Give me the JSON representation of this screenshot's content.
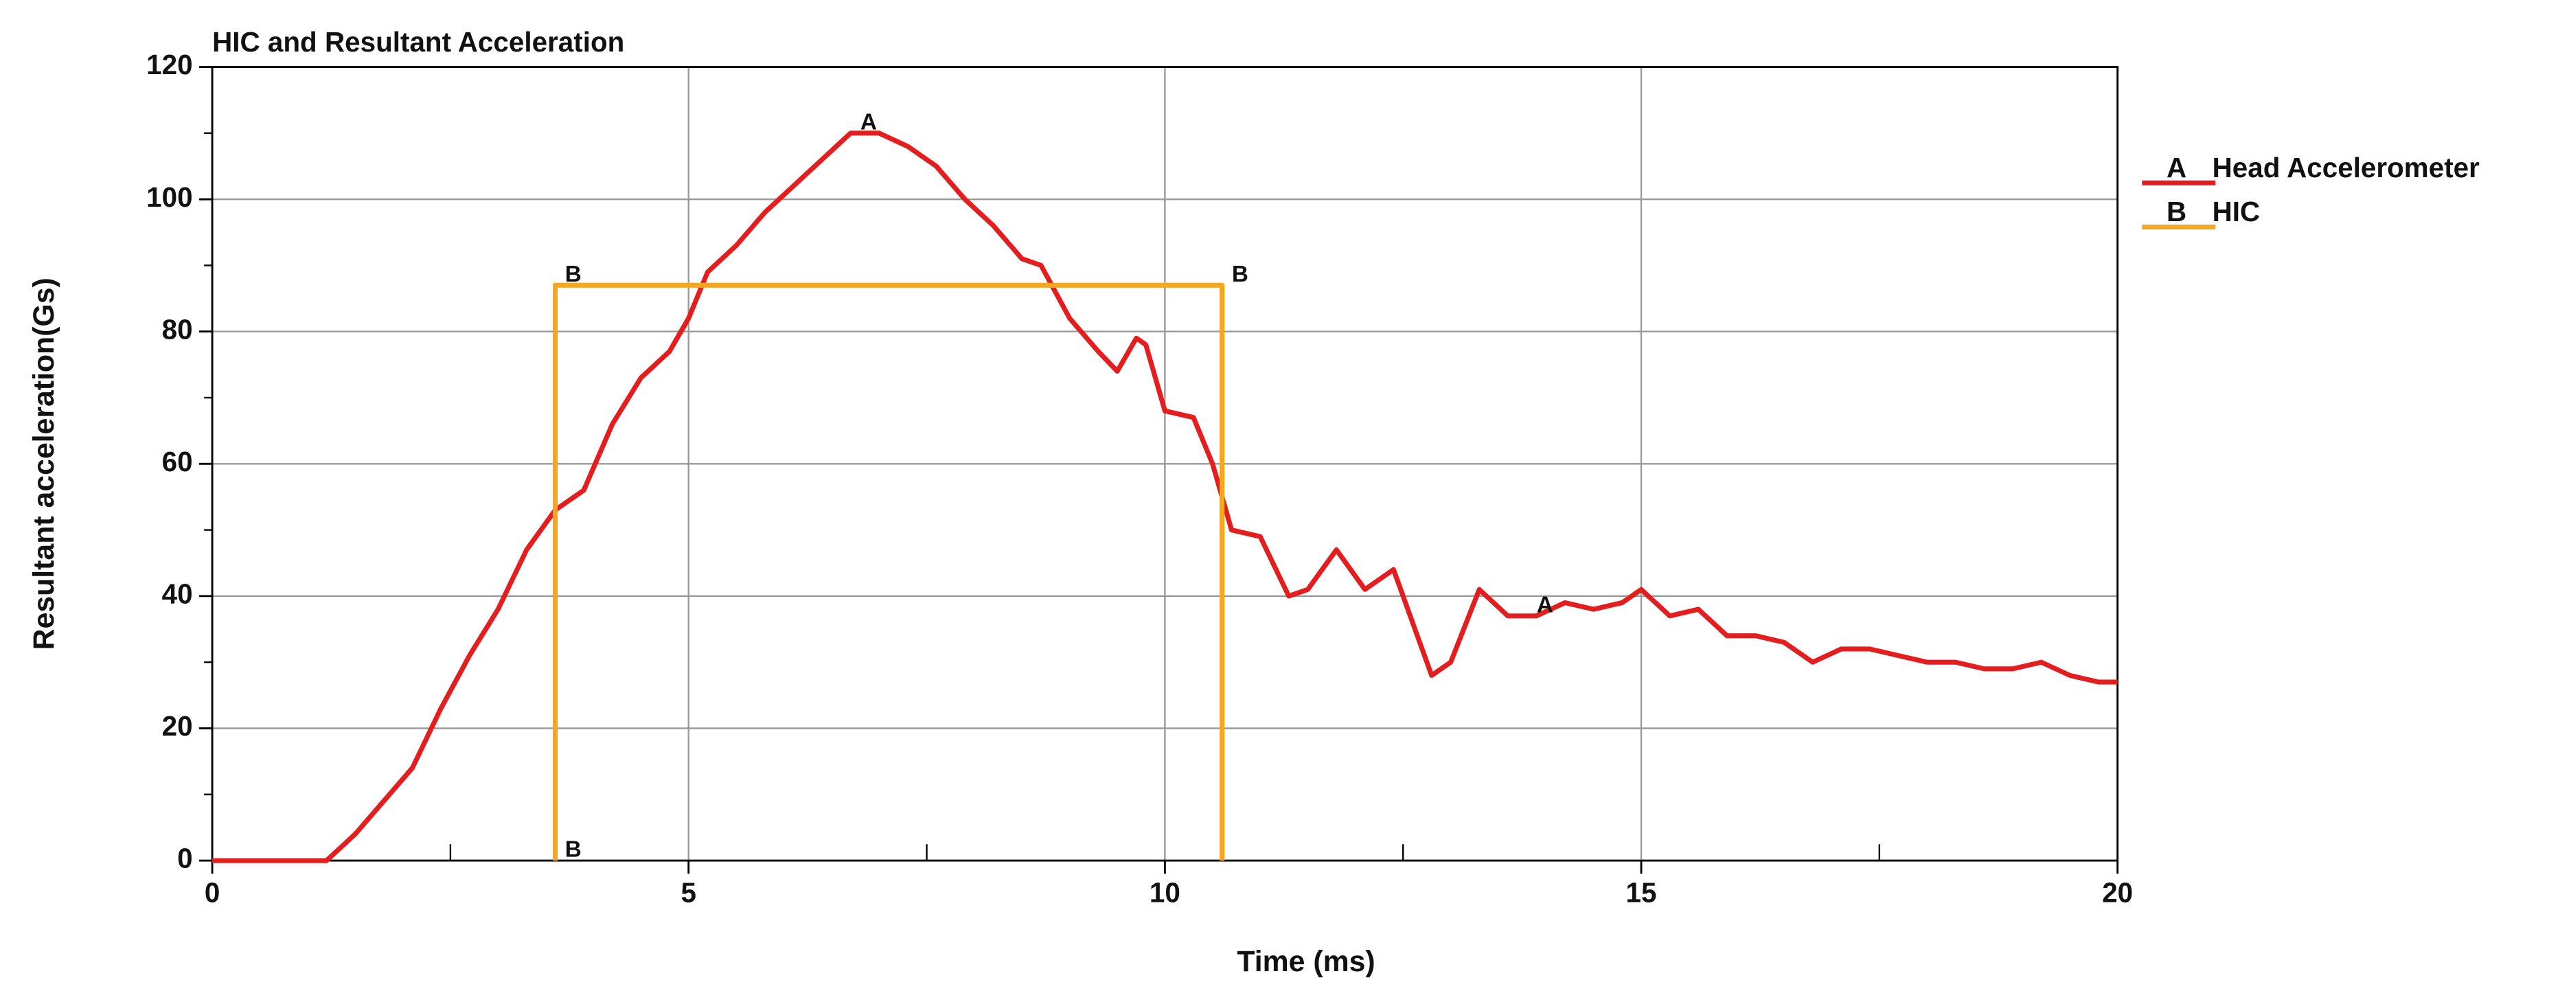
{
  "chart_data": {
    "type": "line",
    "title": "HIC and Resultant Acceleration",
    "x_label": "Time (ms)",
    "y_label": "Resultant acceleration(Gs)",
    "xlim": [
      0,
      20
    ],
    "xticks": [
      0,
      5,
      10,
      15,
      20
    ],
    "minor_xticks": [
      2.5,
      7.5,
      12.5,
      17.5
    ],
    "ylim": [
      0,
      120
    ],
    "yticks": [
      0,
      20,
      40,
      60,
      80,
      100,
      120
    ],
    "minor_yticks": [
      10,
      30,
      50,
      70,
      90,
      110
    ],
    "grid": true,
    "legend": "right",
    "series": [
      {
        "name": "Head Accelerometer",
        "marker": "A",
        "color": "#e41e1e",
        "x": [
          0,
          1.2,
          1.5,
          1.8,
          2.1,
          2.4,
          2.7,
          3.0,
          3.3,
          3.6,
          3.9,
          4.2,
          4.5,
          4.8,
          5.0,
          5.2,
          5.5,
          5.8,
          6.1,
          6.4,
          6.7,
          7.0,
          7.3,
          7.6,
          7.9,
          8.2,
          8.5,
          8.7,
          9.0,
          9.3,
          9.5,
          9.7,
          9.8,
          10.0,
          10.3,
          10.5,
          10.7,
          11.0,
          11.3,
          11.5,
          11.8,
          12.1,
          12.4,
          12.6,
          12.8,
          13.0,
          13.3,
          13.6,
          13.9,
          14.2,
          14.5,
          14.8,
          15.0,
          15.3,
          15.6,
          15.9,
          16.2,
          16.5,
          16.8,
          17.1,
          17.4,
          17.7,
          18.0,
          18.3,
          18.6,
          18.9,
          19.2,
          19.5,
          19.8,
          20
        ],
        "values": [
          0,
          0,
          4,
          9,
          14,
          23,
          31,
          38,
          47,
          53,
          56,
          66,
          73,
          77,
          82,
          89,
          93,
          98,
          102,
          106,
          110,
          110,
          108,
          105,
          100,
          96,
          91,
          90,
          82,
          77,
          74,
          79,
          78,
          68,
          67,
          60,
          50,
          49,
          40,
          41,
          47,
          41,
          44,
          36,
          28,
          30,
          41,
          37,
          37,
          39,
          38,
          39,
          41,
          37,
          38,
          34,
          34,
          33,
          30,
          32,
          32,
          31,
          30,
          30,
          29,
          29,
          30,
          28,
          27,
          27
        ],
        "markers": [
          {
            "x": 6.7,
            "y": 110
          },
          {
            "x": 13.8,
            "y": 37
          }
        ]
      },
      {
        "name": "HIC",
        "marker": "B",
        "color": "#f5a623",
        "x": [
          3.6,
          3.6,
          10.6,
          10.6
        ],
        "values": [
          0,
          87,
          87,
          0
        ],
        "markers": [
          {
            "x": 3.6,
            "y": 0
          },
          {
            "x": 3.6,
            "y": 87
          },
          {
            "x": 10.6,
            "y": 87
          }
        ]
      }
    ]
  }
}
